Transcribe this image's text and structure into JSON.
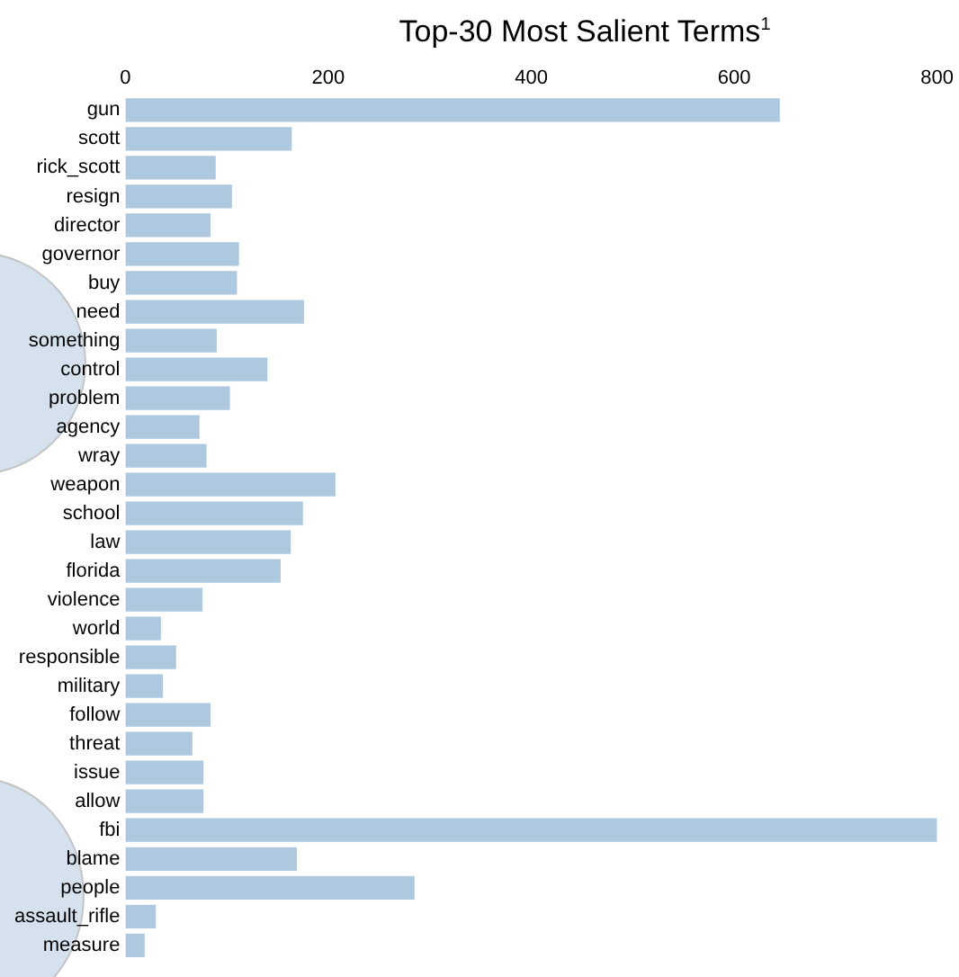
{
  "chart_data": {
    "type": "bar",
    "orientation": "horizontal",
    "title": "Top-30 Most Salient Terms$^{1}$",
    "categories": [
      "gun",
      "scott",
      "rick_scott",
      "resign",
      "director",
      "governor",
      "buy",
      "need",
      "something",
      "control",
      "problem",
      "agency",
      "wray",
      "weapon",
      "school",
      "law",
      "florida",
      "violence",
      "world",
      "responsible",
      "military",
      "follow",
      "threat",
      "issue",
      "allow",
      "fbi",
      "blame",
      "people",
      "assault_rifle",
      "measure"
    ],
    "values": [
      645,
      164,
      89,
      105,
      84,
      112,
      110,
      176,
      90,
      140,
      103,
      73,
      80,
      207,
      175,
      163,
      153,
      76,
      35,
      50,
      37,
      84,
      66,
      77,
      77,
      800,
      169,
      285,
      30,
      19
    ],
    "color": "#adc8df",
    "xlim": [
      0,
      800
    ],
    "xticks": [
      0,
      200,
      400,
      600,
      800
    ],
    "grid": false,
    "legend": false
  }
}
